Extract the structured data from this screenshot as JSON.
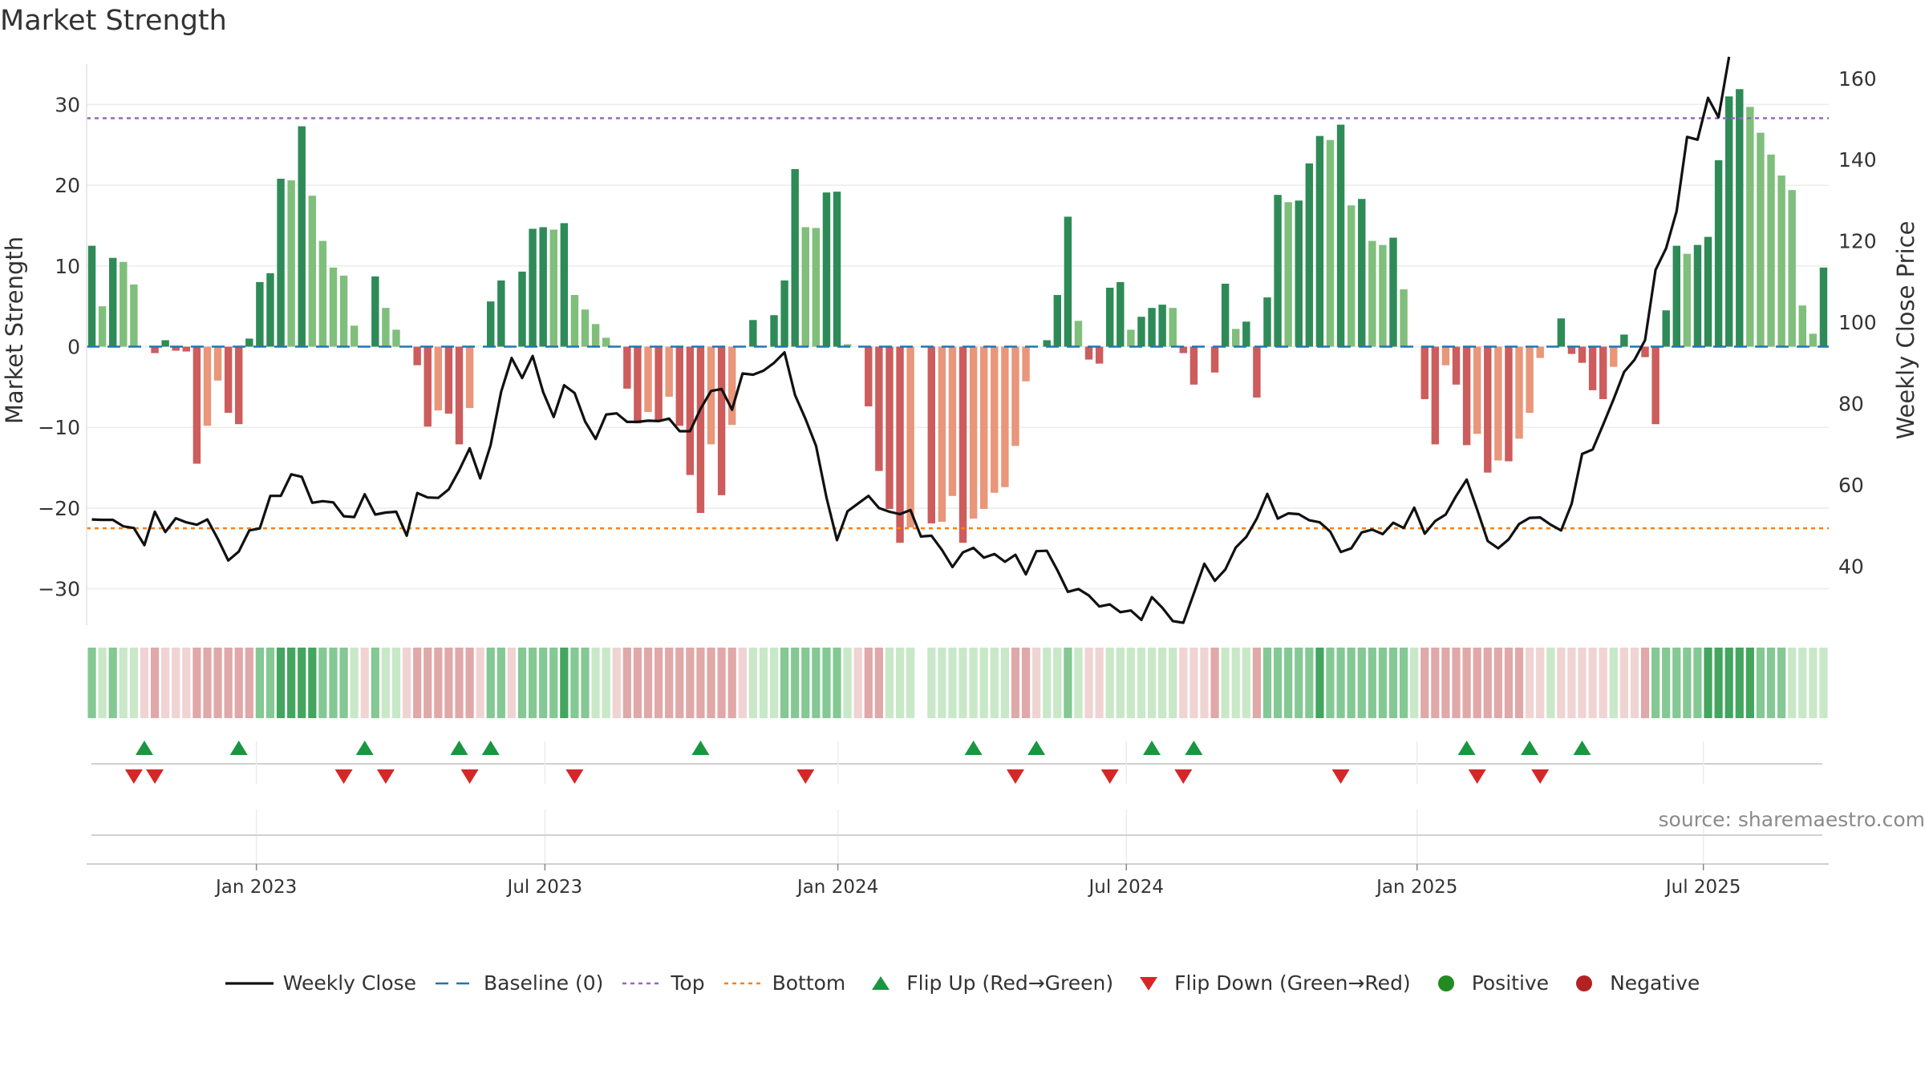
{
  "title": "Market Strength",
  "source": "source: sharemaestro.com",
  "colors": {
    "green_dark": "#2e8b57",
    "green_light": "#7fbf7b",
    "red_dark": "#cd5c5c",
    "red_light": "#e9967a",
    "close_line": "#111111",
    "baseline": "#1f77b4",
    "top_line": "#9467bd",
    "bottom_line": "#ff7f0e",
    "flip_up": "#1a9641",
    "flip_down": "#d62728",
    "positive": "#228b22",
    "negative": "#b22222"
  },
  "legend": [
    {
      "key": "close",
      "label": "Weekly Close"
    },
    {
      "key": "baseline",
      "label": "Baseline (0)"
    },
    {
      "key": "top",
      "label": "Top"
    },
    {
      "key": "bottom",
      "label": "Bottom"
    },
    {
      "key": "flip_up",
      "label": "Flip Up (Red→Green)"
    },
    {
      "key": "flip_down",
      "label": "Flip Down (Green→Red)"
    },
    {
      "key": "positive",
      "label": "Positive"
    },
    {
      "key": "negative",
      "label": "Negative"
    }
  ],
  "chart_data": {
    "type": "bar",
    "title": "Market Strength",
    "ylabel": "Market Strength",
    "y2label": "Weekly Close Price",
    "ylim": [
      -34.5,
      35
    ],
    "y2lim": [
      25.5,
      163.5
    ],
    "yticks": [
      -30,
      -20,
      -10,
      0,
      10,
      20,
      30
    ],
    "y2ticks": [
      40,
      60,
      80,
      100,
      120,
      140,
      160
    ],
    "top_level": 28.3,
    "bottom_level": -22.5,
    "x_range_weeks": [
      0,
      157
    ],
    "x_ticks": [
      {
        "label": "Jan 2023",
        "week": 15.3
      },
      {
        "label": "Jul 2023",
        "week": 41.3
      },
      {
        "label": "Jan 2024",
        "week": 67.7
      },
      {
        "label": "Jul 2024",
        "week": 93.7
      },
      {
        "label": "Jan 2025",
        "week": 119.9
      },
      {
        "label": "Jul 2025",
        "week": 145.7
      }
    ],
    "strength": [
      12.5,
      5,
      11,
      10.5,
      7.7,
      0,
      -0.8,
      0.8,
      -0.5,
      -0.6,
      -14.5,
      -9.8,
      -4.2,
      -8.2,
      -9.6,
      1,
      8,
      9.1,
      20.8,
      20.6,
      27.3,
      18.7,
      13.1,
      9.8,
      8.8,
      2.6,
      0,
      8.7,
      4.8,
      2.1,
      0,
      -2.3,
      -9.9,
      -7.9,
      -8.3,
      -12.1,
      -7.6,
      0,
      5.6,
      8.2,
      0,
      9.3,
      14.6,
      14.8,
      14.5,
      15.3,
      6.4,
      4.6,
      2.8,
      1.1,
      0,
      -5.2,
      -9.5,
      -8.1,
      -9.3,
      -6.2,
      -9.8,
      -15.9,
      -20.6,
      -12.1,
      -18.4,
      -9.7,
      0,
      3.3,
      0,
      3.9,
      8.2,
      22,
      14.8,
      14.7,
      19.1,
      19.2,
      0.3,
      0,
      -7.4,
      -15.4,
      -20.1,
      -24.3,
      -22.4,
      0,
      -21.9,
      -21.7,
      -18.5,
      -24.3,
      -21.3,
      -20.1,
      -18.1,
      -17.4,
      -12.3,
      -4.3,
      0,
      0.8,
      6.4,
      16.1,
      3.2,
      -1.6,
      -2.1,
      7.3,
      8,
      2.1,
      3.7,
      4.8,
      5.2,
      4.8,
      -0.8,
      -4.7,
      0,
      -3.2,
      7.8,
      2.2,
      3.1,
      -6.3,
      6.1,
      18.8,
      17.9,
      18.1,
      22.7,
      26.1,
      25.6,
      27.5,
      17.5,
      18.3,
      13.1,
      12.6,
      13.5,
      7.1,
      0,
      -6.5,
      -12.1,
      -2.3,
      -4.7,
      -12.2,
      -10.8,
      -15.6,
      -14.1,
      -14.2,
      -11.4,
      -8.2,
      -1.4,
      0,
      3.5,
      -0.9,
      -2,
      -5.4,
      -6.5,
      -2.5,
      1.5,
      0,
      -1.3,
      -9.6,
      4.5,
      12.5,
      11.5,
      12.6,
      13.6,
      23.1,
      31,
      31.9,
      29.7,
      26.5,
      23.8,
      21.2,
      19.4,
      5.1,
      1.6,
      9.8
    ],
    "weekly_close": [
      51.5,
      51.4,
      51.4,
      49.8,
      49.4,
      45.2,
      53.4,
      48.4,
      51.8,
      50.8,
      50.2,
      51.5,
      46.7,
      41.4,
      43.6,
      48.8,
      49.3,
      57.3,
      57.3,
      62.6,
      62,
      55.6,
      56,
      55.7,
      52.3,
      52.1,
      57.7,
      52.7,
      53.2,
      53.4,
      47.5,
      58,
      56.9,
      56.8,
      58.9,
      63.6,
      69,
      61.6,
      69.8,
      82.9,
      91.2,
      86.3,
      91.7,
      82.8,
      76.7,
      84.5,
      82.6,
      75.6,
      71.3,
      77.3,
      77.6,
      75.5,
      75.5,
      75.8,
      75.7,
      76.3,
      73.2,
      73.2,
      78.7,
      83.1,
      83.6,
      78.5,
      87.4,
      87.1,
      88.1,
      90,
      92.6,
      82.1,
      76.2,
      69.6,
      56.9,
      46.4,
      53.5,
      55.4,
      57.3,
      54.3,
      53.4,
      52.8,
      53.8,
      47.3,
      47.5,
      44,
      39.8,
      43.4,
      44.5,
      42.1,
      43,
      41.1,
      42.8,
      38,
      43.7,
      43.8,
      39,
      33.7,
      34.4,
      32.8,
      30.1,
      30.6,
      28.7,
      29.1,
      26.8,
      32.4,
      29.8,
      26.5,
      26.1,
      33.3,
      40.6,
      36.4,
      39.2,
      44.6,
      47.2,
      51.7,
      57.8,
      51.7,
      53,
      52.8,
      51.3,
      50.8,
      48.5,
      43.5,
      44.4,
      48.3,
      49,
      47.9,
      50.7,
      49.4,
      54.4,
      48,
      51.1,
      52.7,
      57.3,
      61.3,
      53.9,
      46.2,
      44.4,
      46.6,
      50.4,
      51.9,
      52,
      50.2,
      48.8,
      55.3,
      67.6,
      68.7,
      74.8,
      81.1,
      87.8,
      90.8,
      95.6,
      112.9,
      118.2,
      127.3,
      145.6,
      144.9,
      155.2,
      150.4,
      165.3
    ]
  },
  "flips": {
    "up": [
      5,
      14,
      26,
      35,
      38,
      58,
      84,
      90,
      101,
      105,
      131,
      137,
      142
    ],
    "down": [
      4,
      6,
      24,
      28,
      36,
      46,
      68,
      88,
      97,
      104,
      119,
      132,
      138
    ]
  },
  "strip": {
    "levels": [
      4,
      3,
      4,
      3,
      3,
      1,
      2,
      1,
      1,
      1,
      2,
      2,
      2,
      2,
      2,
      2,
      4,
      4,
      5,
      5,
      5,
      5,
      4,
      4,
      4,
      3,
      1,
      4,
      3,
      3,
      1,
      2,
      2,
      2,
      2,
      2,
      2,
      1,
      4,
      4,
      1,
      4,
      4,
      4,
      4,
      5,
      4,
      4,
      3,
      3,
      1,
      2,
      2,
      2,
      2,
      2,
      2,
      2,
      2,
      2,
      2,
      2,
      1,
      3,
      3,
      3,
      4,
      4,
      4,
      4,
      4,
      4,
      3,
      1,
      2,
      2,
      3,
      3,
      3,
      0,
      3,
      3,
      3,
      3,
      3,
      3,
      3,
      3,
      2,
      2,
      1,
      3,
      3,
      4,
      3,
      1,
      1,
      3,
      3,
      3,
      3,
      3,
      3,
      3,
      1,
      1,
      1,
      2,
      3,
      3,
      3,
      2,
      4,
      4,
      4,
      4,
      4,
      5,
      4,
      4,
      4,
      4,
      4,
      4,
      4,
      4,
      3,
      2,
      2,
      2,
      2,
      2,
      2,
      2,
      2,
      2,
      2,
      1,
      1,
      3,
      1,
      1,
      1,
      1,
      1,
      3,
      1,
      1,
      2,
      4,
      4,
      4,
      4,
      4,
      5,
      5,
      5,
      5,
      5,
      4,
      4,
      4,
      3,
      3,
      3,
      3
    ],
    "colors": [
      "#ffffff",
      "#f0d3d3",
      "#e0a8a8",
      "#c8e8c8",
      "#84c893",
      "#44a55e"
    ]
  }
}
